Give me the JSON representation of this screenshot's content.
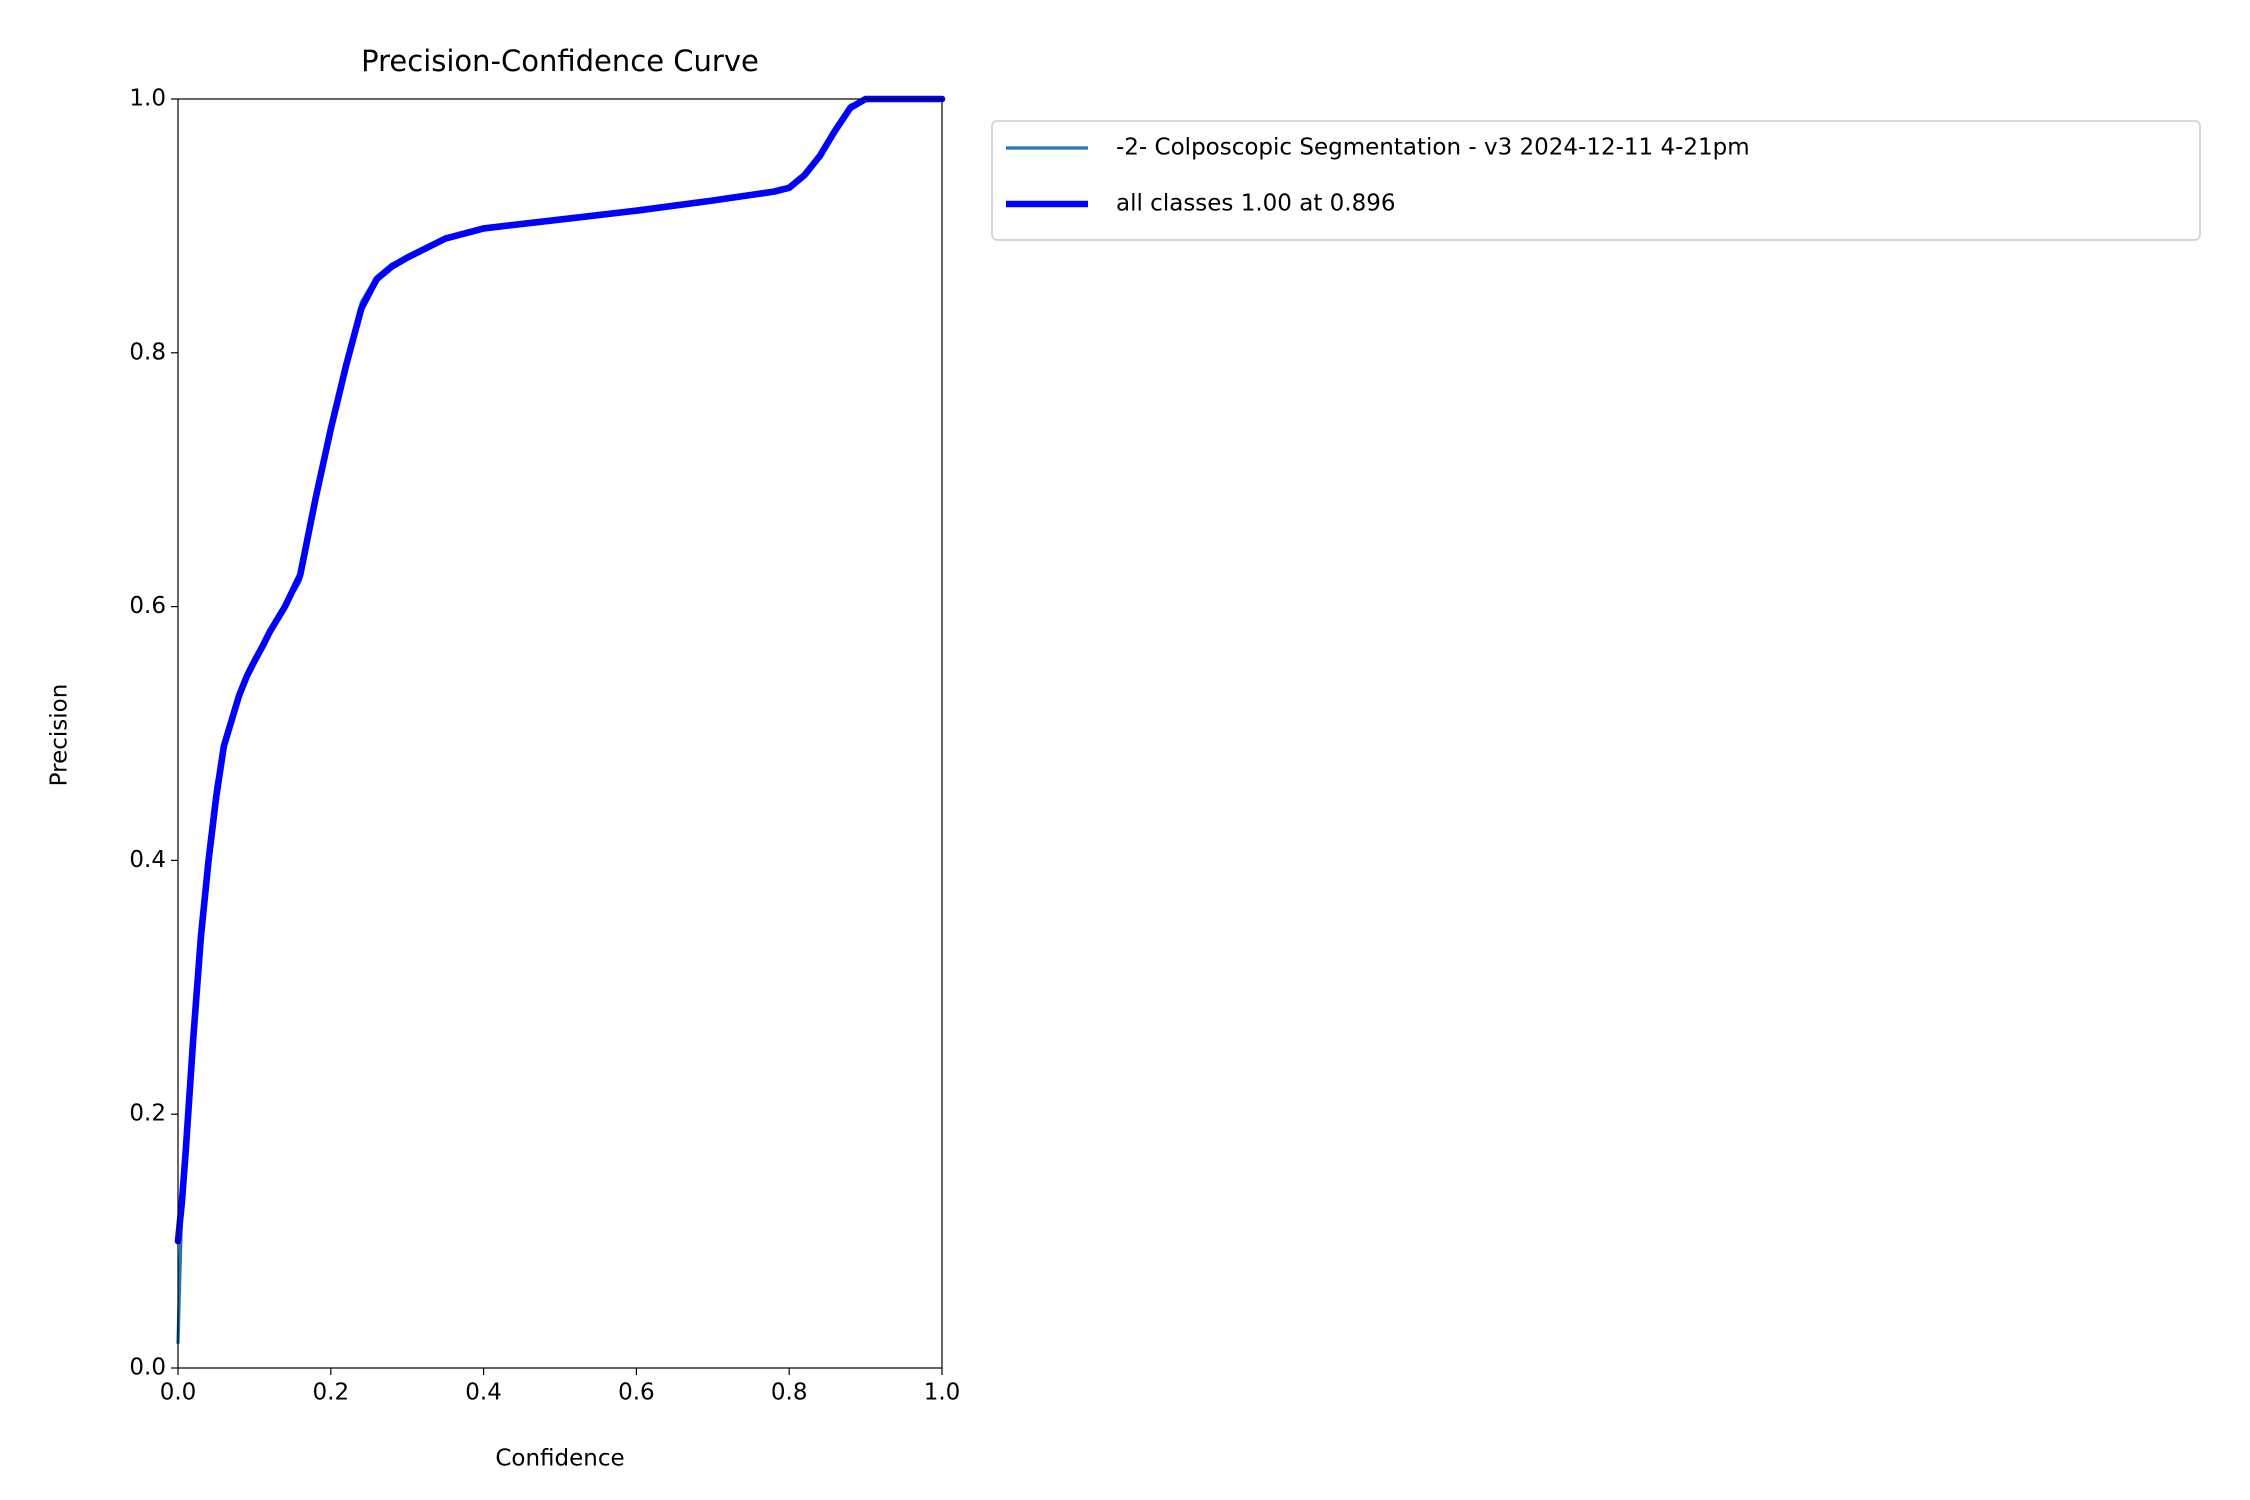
{
  "chart_data": {
    "type": "line",
    "title": "Precision-Confidence Curve",
    "x_label": "Confidence",
    "y_label": "Precision",
    "x": [
      0,
      0.005,
      0.01,
      0.02,
      0.03,
      0.04,
      0.05,
      0.06,
      0.07,
      0.08,
      0.09,
      0.1,
      0.11,
      0.12,
      0.14,
      0.16,
      0.17,
      0.18,
      0.2,
      0.22,
      0.24,
      0.26,
      0.28,
      0.3,
      0.35,
      0.4,
      0.5,
      0.6,
      0.7,
      0.78,
      0.8,
      0.82,
      0.84,
      0.86,
      0.88,
      0.9,
      1.0
    ],
    "series": [
      {
        "name": "-2- Colposcopic Segmentation - v3 2024-12-11 4-21pm",
        "color": "#1f77b4",
        "width": 1.5,
        "values": [
          0.02,
          0.13,
          0.17,
          0.27,
          0.35,
          0.41,
          0.46,
          0.49,
          0.51,
          0.53,
          0.545,
          0.555,
          0.57,
          0.58,
          0.6,
          0.62,
          0.65,
          0.68,
          0.74,
          0.79,
          0.84,
          0.86,
          0.87,
          0.875,
          0.89,
          0.898,
          0.905,
          0.912,
          0.92,
          0.927,
          0.93,
          0.94,
          0.955,
          0.975,
          0.995,
          1.0,
          1.0
        ]
      },
      {
        "name": "all classes 1.00 at 0.896",
        "color": "#0000ff",
        "width": 3,
        "values": [
          0.1,
          0.13,
          0.17,
          0.26,
          0.34,
          0.4,
          0.45,
          0.49,
          0.51,
          0.53,
          0.545,
          0.557,
          0.568,
          0.58,
          0.6,
          0.625,
          0.655,
          0.685,
          0.74,
          0.79,
          0.835,
          0.858,
          0.868,
          0.875,
          0.89,
          0.898,
          0.905,
          0.912,
          0.92,
          0.927,
          0.93,
          0.94,
          0.955,
          0.975,
          0.993,
          1.0,
          1.0
        ]
      }
    ],
    "xlim": [
      0,
      1
    ],
    "ylim": [
      0,
      1
    ],
    "xticks": [
      {
        "value": 0,
        "label": "0.0"
      },
      0.2,
      0.4,
      0.6,
      0.8,
      {
        "value": 1,
        "label": "1.0"
      }
    ],
    "yticks": [
      {
        "value": 0,
        "label": "0.0"
      },
      0.2,
      0.4,
      0.6,
      0.8,
      {
        "value": 1,
        "label": "1.0"
      }
    ],
    "legend": "upper-left-outside"
  }
}
